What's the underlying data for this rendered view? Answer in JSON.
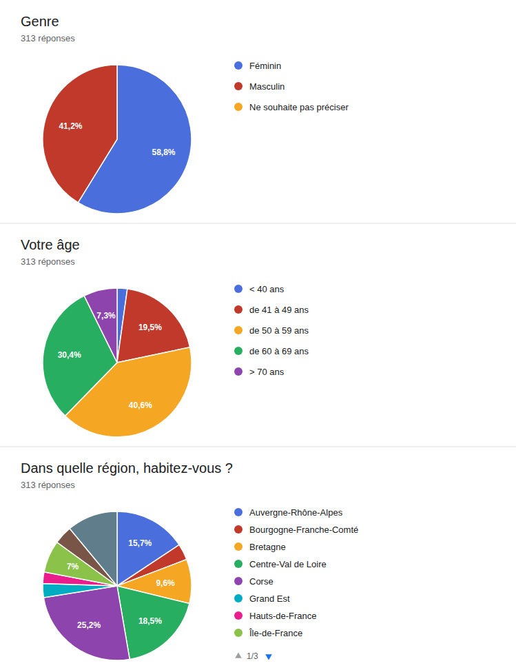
{
  "chart_data": [
    {
      "type": "pie",
      "title": "Genre",
      "subtitle": "313 réponses",
      "categories": [
        "Féminin",
        "Masculin",
        "Ne souhaite pas préciser"
      ],
      "values": [
        58.8,
        41.2,
        null
      ],
      "value_labels": [
        "58,8%",
        "41,2%",
        null
      ],
      "colors": [
        "#4a6fdc",
        "#c0392b",
        "#f5a623"
      ],
      "data_labels": true,
      "legend": "right"
    },
    {
      "type": "pie",
      "title": "Votre âge",
      "subtitle": "313 réponses",
      "categories": [
        "< 40 ans",
        "de 41 à 49 ans",
        "de 50 à 59 ans",
        "de 60 à 69 ans",
        "> 70 ans"
      ],
      "values": [
        2.2,
        19.5,
        40.6,
        30.4,
        7.3
      ],
      "value_labels": [
        null,
        "19,5%",
        "40,6%",
        "30,4%",
        "7,3%"
      ],
      "colors": [
        "#4a6fdc",
        "#c0392b",
        "#f5a623",
        "#27ae60",
        "#8e44ad"
      ],
      "data_labels": true,
      "legend": "right"
    },
    {
      "type": "pie",
      "title": "Dans quelle région, habitez-vous ?",
      "subtitle": "313 réponses",
      "categories": [
        "Auvergne-Rhône-Alpes",
        "Bourgogne-Franche-Comté",
        "Bretagne",
        "Centre-Val de Loire",
        "Corse",
        "Grand Est",
        "Hauts-de-France",
        "Île-de-France",
        null,
        null
      ],
      "values": [
        15.7,
        3.5,
        9.6,
        18.5,
        25.2,
        3.0,
        2.5,
        7.0,
        4.0,
        11.0
      ],
      "value_labels": [
        "15,7%",
        null,
        "9,6%",
        "18,5%",
        "25,2%",
        null,
        null,
        "7%",
        null,
        null
      ],
      "colors": [
        "#4a6fdc",
        "#c0392b",
        "#f5a623",
        "#27ae60",
        "#8e44ad",
        "#00acc1",
        "#e91e8c",
        "#8bc34a",
        "#795548",
        "#607d8b"
      ],
      "data_labels": true,
      "legend": "right",
      "annotations": [
        "1/3"
      ]
    }
  ]
}
